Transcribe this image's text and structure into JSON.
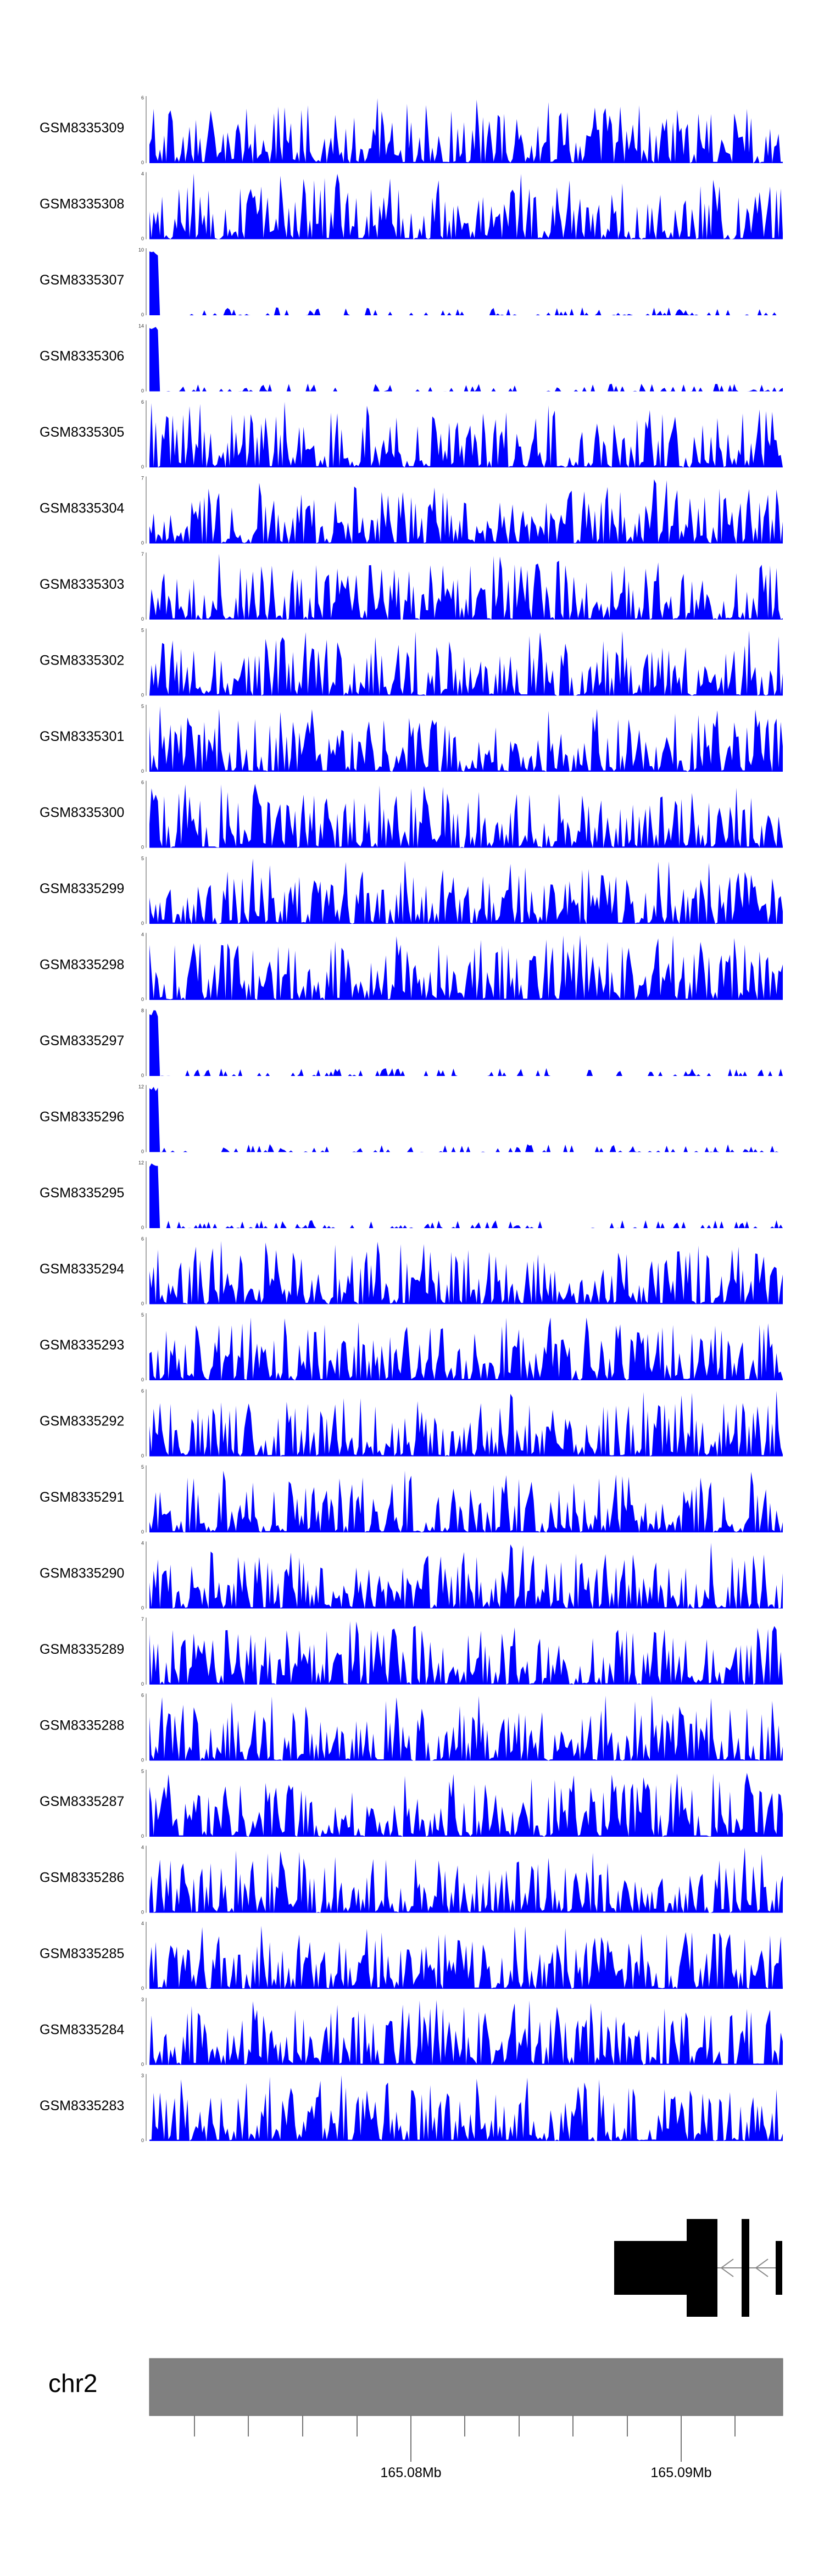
{
  "chart_data": {
    "type": "area",
    "chromosome": "chr2",
    "x_ticks": [
      "165.08Mb",
      "165.09Mb"
    ],
    "fill_color": "#0000ff",
    "ideogram_color": "#808080",
    "tracks": [
      {
        "name": "GSM8335309",
        "ymax": "6",
        "ymin": "0"
      },
      {
        "name": "GSM8335308",
        "ymax": "4",
        "ymin": "0"
      },
      {
        "name": "GSM8335307",
        "ymax": "10",
        "ymin": "0"
      },
      {
        "name": "GSM8335306",
        "ymax": "14",
        "ymin": "0"
      },
      {
        "name": "GSM8335305",
        "ymax": "6",
        "ymin": "0"
      },
      {
        "name": "GSM8335304",
        "ymax": "7",
        "ymin": "0"
      },
      {
        "name": "GSM8335303",
        "ymax": "7",
        "ymin": "0"
      },
      {
        "name": "GSM8335302",
        "ymax": "5",
        "ymin": "0"
      },
      {
        "name": "GSM8335301",
        "ymax": "5",
        "ymin": "0"
      },
      {
        "name": "GSM8335300",
        "ymax": "6",
        "ymin": "0"
      },
      {
        "name": "GSM8335299",
        "ymax": "5",
        "ymin": "0"
      },
      {
        "name": "GSM8335298",
        "ymax": "4",
        "ymin": "0"
      },
      {
        "name": "GSM8335297",
        "ymax": "8",
        "ymin": "0"
      },
      {
        "name": "GSM8335296",
        "ymax": "12",
        "ymin": "0"
      },
      {
        "name": "GSM8335295",
        "ymax": "12",
        "ymin": "0"
      },
      {
        "name": "GSM8335294",
        "ymax": "6",
        "ymin": "0"
      },
      {
        "name": "GSM8335293",
        "ymax": "5",
        "ymin": "0"
      },
      {
        "name": "GSM8335292",
        "ymax": "6",
        "ymin": "0"
      },
      {
        "name": "GSM8335291",
        "ymax": "5",
        "ymin": "0"
      },
      {
        "name": "GSM8335290",
        "ymax": "4",
        "ymin": "0"
      },
      {
        "name": "GSM8335289",
        "ymax": "7",
        "ymin": "0"
      },
      {
        "name": "GSM8335288",
        "ymax": "6",
        "ymin": "0"
      },
      {
        "name": "GSM8335287",
        "ymax": "5",
        "ymin": "0"
      },
      {
        "name": "GSM8335286",
        "ymax": "4",
        "ymin": "0"
      },
      {
        "name": "GSM8335285",
        "ymax": "4",
        "ymin": "0"
      },
      {
        "name": "GSM8335284",
        "ymax": "3",
        "ymin": "0"
      },
      {
        "name": "GSM8335283",
        "ymax": "3",
        "ymin": "0"
      }
    ]
  }
}
